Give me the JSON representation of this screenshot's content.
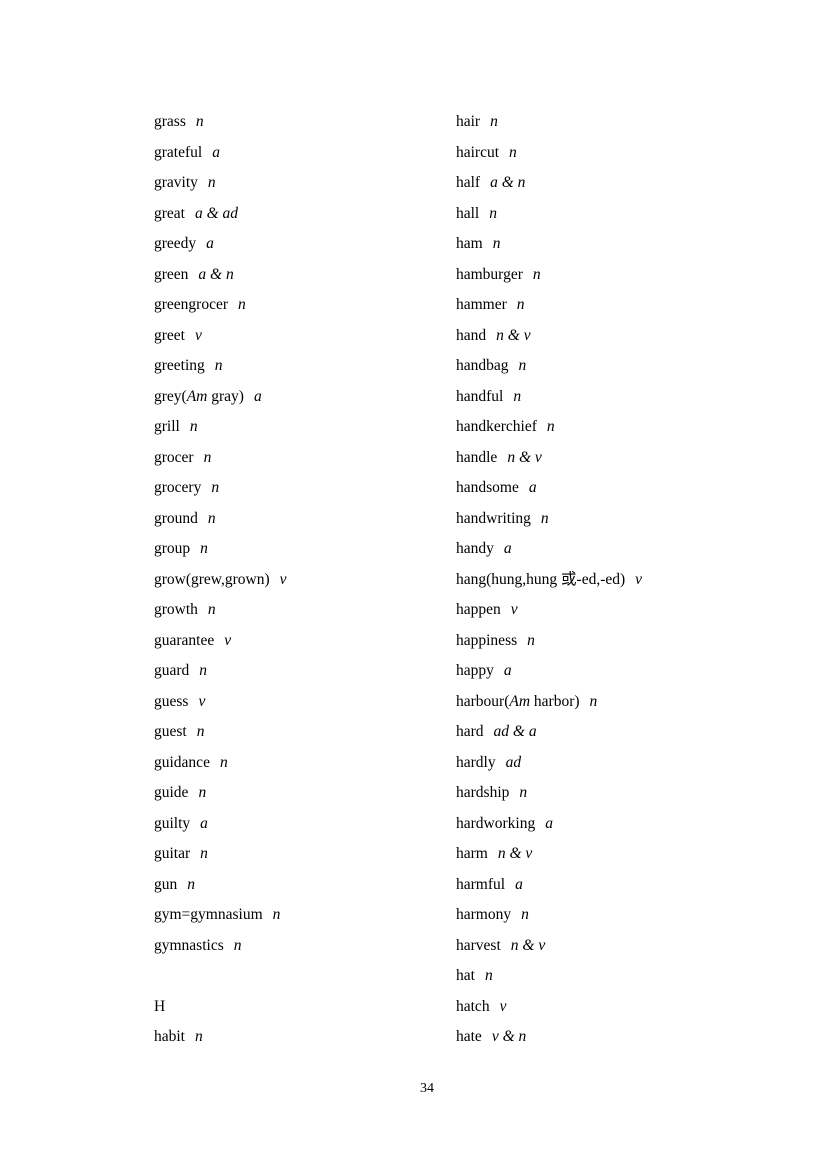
{
  "page": {
    "number": "34"
  },
  "word_list": {
    "left_column": [
      {
        "word": "grass",
        "pos": "n"
      },
      {
        "word": "grateful",
        "pos": "a"
      },
      {
        "word": "gravity",
        "pos": "n"
      },
      {
        "word": "great",
        "pos": "a & ad"
      },
      {
        "word": "greedy",
        "pos": "a"
      },
      {
        "word": "green",
        "pos": "a & n"
      },
      {
        "word": "greengrocer",
        "pos": "n"
      },
      {
        "word": "greet",
        "pos": "v"
      },
      {
        "word": "greeting",
        "pos": "n"
      },
      {
        "word": "grey(Am gray)",
        "pos": "a",
        "em": [
          "Am"
        ]
      },
      {
        "word": "grill",
        "pos": "n"
      },
      {
        "word": "grocer",
        "pos": "n"
      },
      {
        "word": "grocery",
        "pos": "n"
      },
      {
        "word": "ground",
        "pos": "n"
      },
      {
        "word": "group",
        "pos": "n"
      },
      {
        "word": "grow(grew,grown)",
        "pos": "v"
      },
      {
        "word": "growth",
        "pos": "n"
      },
      {
        "word": "guarantee",
        "pos": "v"
      },
      {
        "word": "guard",
        "pos": "n"
      },
      {
        "word": "guess",
        "pos": "v"
      },
      {
        "word": "guest",
        "pos": "n"
      },
      {
        "word": "guidance",
        "pos": "n"
      },
      {
        "word": "guide",
        "pos": "n"
      },
      {
        "word": "guilty",
        "pos": "a"
      },
      {
        "word": "guitar",
        "pos": "n"
      },
      {
        "word": "gun",
        "pos": "n"
      },
      {
        "word": "gym=gymnasium",
        "pos": "n"
      },
      {
        "word": "gymnastics",
        "pos": "n"
      },
      {
        "blank": true
      },
      {
        "word": "H",
        "pos": "",
        "section": true
      },
      {
        "word": "habit",
        "pos": "n"
      }
    ],
    "right_column": [
      {
        "word": "hair",
        "pos": "n"
      },
      {
        "word": "haircut",
        "pos": "n"
      },
      {
        "word": "half",
        "pos": "a & n"
      },
      {
        "word": "hall",
        "pos": "n"
      },
      {
        "word": "ham",
        "pos": "n"
      },
      {
        "word": "hamburger",
        "pos": "n"
      },
      {
        "word": "hammer",
        "pos": "n"
      },
      {
        "word": "hand",
        "pos": "n & v"
      },
      {
        "word": "handbag",
        "pos": "n"
      },
      {
        "word": "handful",
        "pos": "n"
      },
      {
        "word": "handkerchief",
        "pos": "n"
      },
      {
        "word": "handle",
        "pos": "n & v"
      },
      {
        "word": "handsome",
        "pos": "a"
      },
      {
        "word": "handwriting",
        "pos": "n"
      },
      {
        "word": "handy",
        "pos": "a"
      },
      {
        "word": "hang(hung,hung 或-ed,-ed)",
        "pos": "v"
      },
      {
        "word": "happen",
        "pos": "v"
      },
      {
        "word": "happiness",
        "pos": "n"
      },
      {
        "word": "happy",
        "pos": "a"
      },
      {
        "word": "harbour(Am harbor)",
        "pos": "n",
        "em": [
          "Am"
        ]
      },
      {
        "word": "hard",
        "pos": "ad & a"
      },
      {
        "word": "hardly",
        "pos": "ad"
      },
      {
        "word": "hardship",
        "pos": "n"
      },
      {
        "word": "hardworking",
        "pos": "a"
      },
      {
        "word": "harm",
        "pos": "n & v"
      },
      {
        "word": "harmful",
        "pos": "a"
      },
      {
        "word": "harmony",
        "pos": "n"
      },
      {
        "word": "harvest",
        "pos": "n & v"
      },
      {
        "word": "hat",
        "pos": "n"
      },
      {
        "word": "hatch",
        "pos": "v"
      },
      {
        "word": "hate",
        "pos": "v & n"
      }
    ]
  }
}
